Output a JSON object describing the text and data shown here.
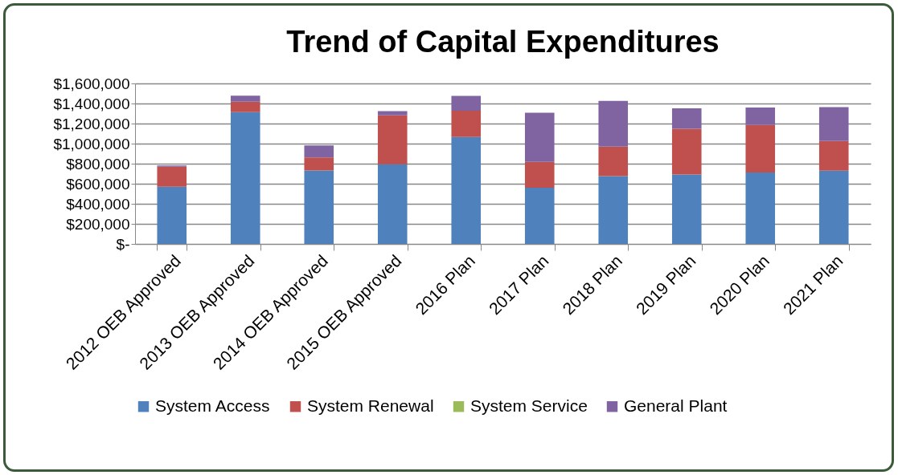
{
  "chart_data": {
    "type": "bar",
    "title": "Trend of Capital Expenditures",
    "categories": [
      "2012 OEB Approved",
      "2013 OEB Approved",
      "2014 OEB Approved",
      "2015 OEB Approved",
      "2016 Plan",
      "2017 Plan",
      "2018 Plan",
      "2019 Plan",
      "2020 Plan",
      "2021 Plan"
    ],
    "stacked": true,
    "series": [
      {
        "name": "System Access",
        "color": "#4f81bd",
        "values": [
          570000,
          1315000,
          733000,
          795000,
          1067000,
          560000,
          677000,
          693000,
          712000,
          731000
        ]
      },
      {
        "name": "System Renewal",
        "color": "#c0504d",
        "values": [
          200000,
          104000,
          130000,
          488000,
          261000,
          259000,
          294000,
          456000,
          475000,
          296000
        ]
      },
      {
        "name": "System Service",
        "color": "#9bbb59",
        "values": [
          0,
          0,
          0,
          0,
          0,
          0,
          0,
          0,
          0,
          0
        ]
      },
      {
        "name": "General Plant",
        "color": "#8064a2",
        "values": [
          12000,
          60000,
          120000,
          42000,
          149000,
          490000,
          456000,
          203000,
          173000,
          338000
        ]
      }
    ],
    "ylim": [
      0,
      1600000
    ],
    "yticks": [
      {
        "value": 0,
        "label": "$-"
      },
      {
        "value": 200000,
        "label": "$200,000"
      },
      {
        "value": 400000,
        "label": "$400,000"
      },
      {
        "value": 600000,
        "label": "$600,000"
      },
      {
        "value": 800000,
        "label": "$800,000"
      },
      {
        "value": 1000000,
        "label": "$1,000,000"
      },
      {
        "value": 1200000,
        "label": "$1,200,000"
      },
      {
        "value": 1400000,
        "label": "$1,400,000"
      },
      {
        "value": 1600000,
        "label": "$1,600,000"
      }
    ],
    "grid": "y",
    "legend": "bottom"
  }
}
